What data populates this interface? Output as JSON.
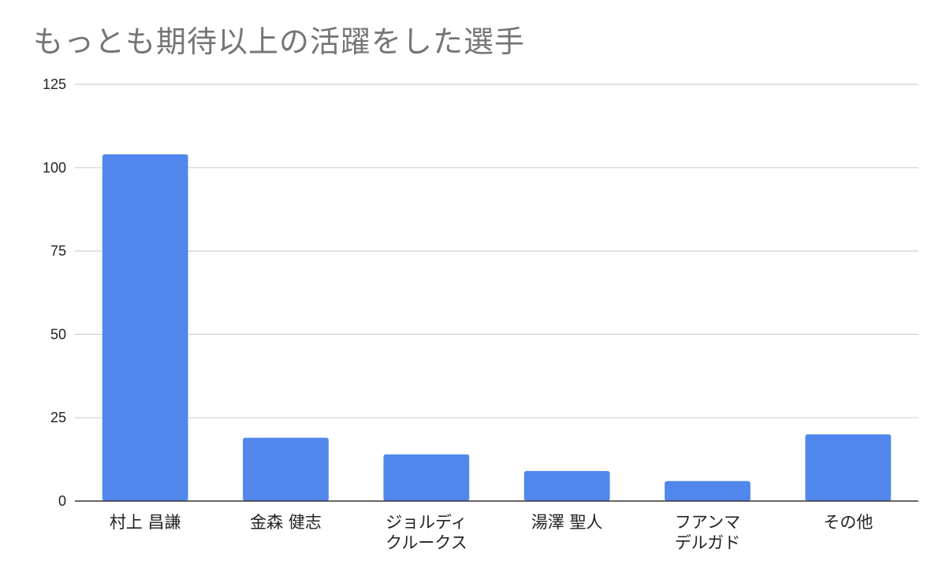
{
  "chart_data": {
    "type": "bar",
    "title": "もっとも期待以上の活躍をした選手",
    "xlabel": "",
    "ylabel": "",
    "categories": [
      [
        "村上 昌謙"
      ],
      [
        "金森 健志"
      ],
      [
        "ジョルディ",
        "クルークス"
      ],
      [
        "湯澤 聖人"
      ],
      [
        "フアンマ",
        "デルガド"
      ],
      [
        "その他"
      ]
    ],
    "values": [
      104,
      19,
      14,
      9,
      6,
      20
    ],
    "ylim": [
      0,
      125
    ],
    "yticks": [
      0,
      25,
      50,
      75,
      100,
      125
    ],
    "grid": true,
    "colors": {
      "bar": "#5186ec",
      "grid": "#d0d0d0",
      "axis": "#333333"
    }
  }
}
